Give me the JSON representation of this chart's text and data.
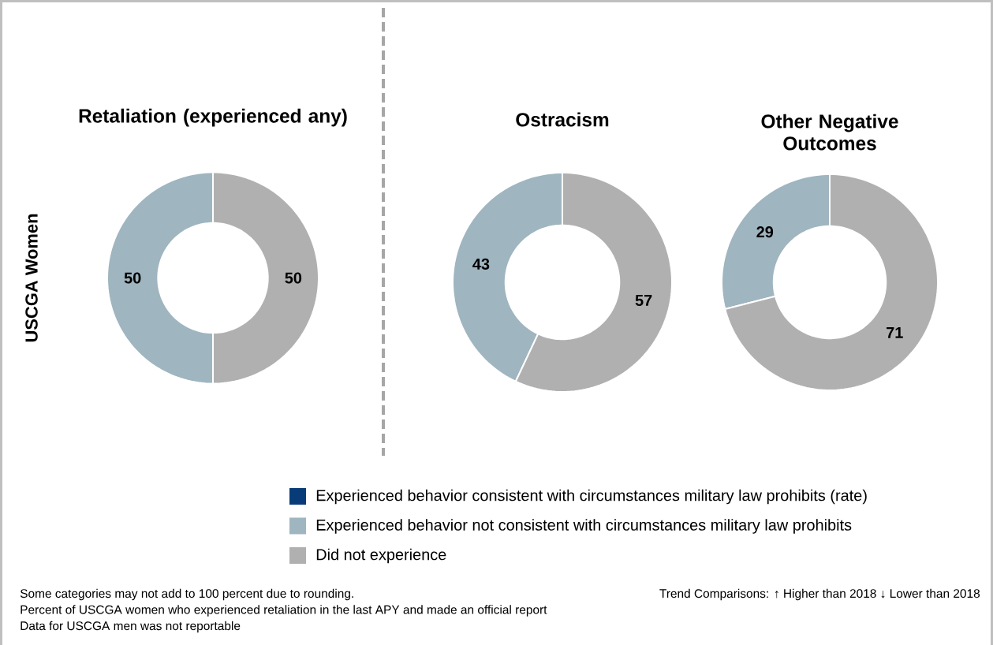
{
  "chart_data": [
    {
      "type": "donut",
      "title": "Retaliation (experienced any)",
      "ylabel": "USCGA Women",
      "categories": [
        "Experienced behavior consistent with circumstances military law prohibits (rate)",
        "Experienced behavior not consistent with circumstances military law prohibits",
        "Did not experience"
      ],
      "values": [
        0,
        50,
        50
      ],
      "value_labels": [
        null,
        "50",
        "50"
      ],
      "colors": [
        "#083c78",
        "#9fb5c0",
        "#b0b0b0"
      ],
      "legend": "bottom",
      "annotations": [
        "Some categories may not add to 100 percent due to rounding.",
        "Percent of USCGA women who experienced retaliation in the last APY and made an official report",
        "Data for USCGA men was not reportable",
        "Trend Comparisons:   ↑ Higher than 2018  ↓ Lower than 2018"
      ]
    },
    {
      "type": "donut",
      "title": "Ostracism",
      "categories": [
        null,
        null,
        null
      ],
      "values": [
        0,
        43,
        57
      ],
      "value_labels": [
        null,
        "43",
        "57"
      ],
      "colors": [
        "#083c78",
        "#9fb5c0",
        "#b0b0b0"
      ]
    },
    {
      "type": "donut",
      "title": "Other Negative Outcomes",
      "categories": [
        null,
        null,
        null
      ],
      "values": [
        0,
        29,
        71
      ],
      "value_labels": [
        null,
        "29",
        "71"
      ],
      "colors": [
        "#083c78",
        "#9fb5c0",
        "#b0b0b0"
      ]
    }
  ]
}
